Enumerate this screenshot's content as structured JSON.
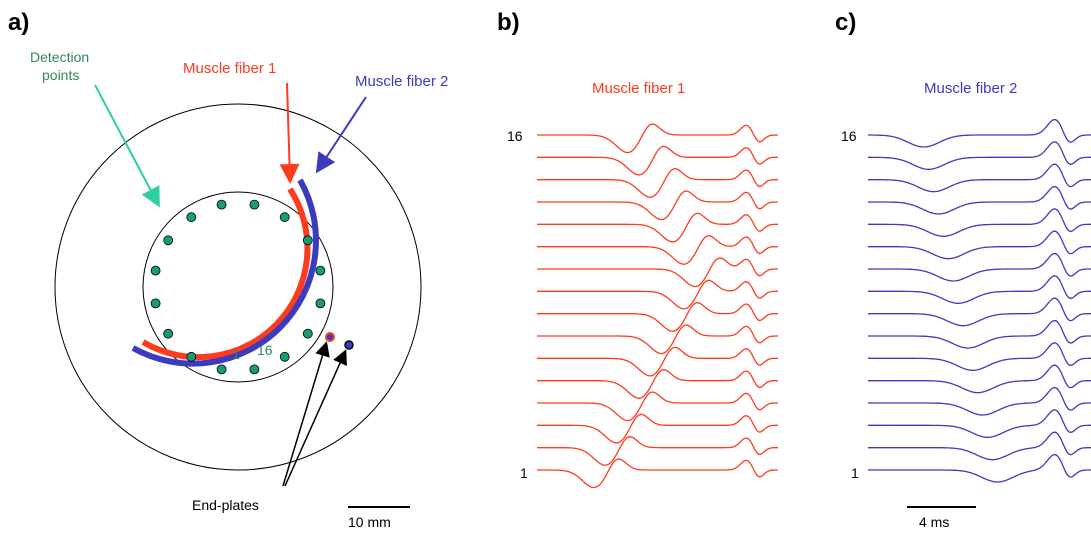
{
  "panels": {
    "a": {
      "label": "a)",
      "detection_label_line1": "Detection",
      "detection_label_line2": "points",
      "fiber1_label": "Muscle fiber 1",
      "fiber2_label": "Muscle fiber 2",
      "channel_first": "1",
      "channel_last": "16",
      "endplates_label": "End-plates",
      "scale_label": "10 mm"
    },
    "b": {
      "label": "b)",
      "title": "Muscle fiber 1",
      "channel_top": "16",
      "channel_bottom": "1"
    },
    "c": {
      "label": "c)",
      "title": "Muscle fiber 2",
      "channel_top": "16",
      "channel_bottom": "1",
      "scale_label": "4 ms"
    }
  },
  "colors": {
    "fiber1": "#ff3b1f",
    "fiber2": "#3b3bbf",
    "detection": "#2e8b57",
    "electrode_fill": "#1a9b77",
    "arrow_green": "#2ecfa0"
  }
}
